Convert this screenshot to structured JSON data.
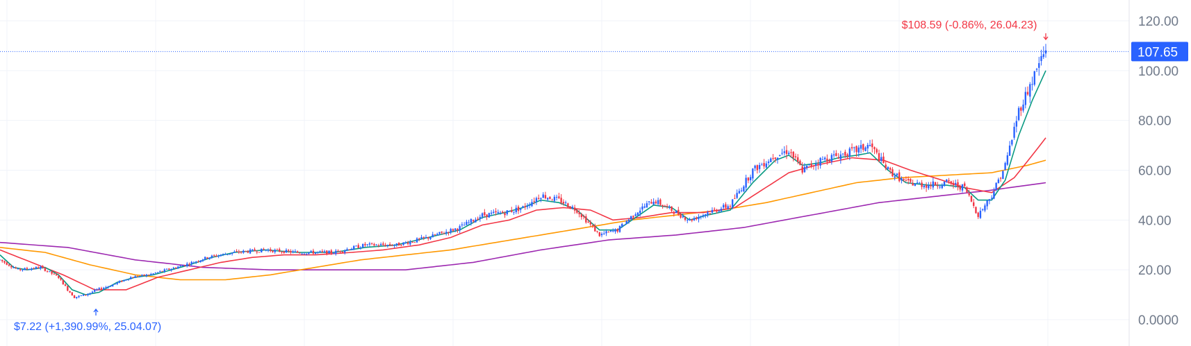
{
  "chart_data": {
    "type": "candlestick",
    "ylim": [
      -5,
      130
    ],
    "y_ticks": [
      "120.00",
      "100.00",
      "80.00",
      "60.00",
      "40.00",
      "20.00",
      "0.0000"
    ],
    "y_tick_values": [
      120,
      100,
      80,
      60,
      40,
      20,
      0
    ],
    "grid": true,
    "current_price": {
      "label": "107.65",
      "value": 107.65
    },
    "annotations": [
      {
        "name": "high-annotation",
        "text": "$108.59 (-0.86%, 26.04.23)",
        "value": 108.59,
        "color": "#f23645"
      },
      {
        "name": "low-annotation",
        "text": "$7.22 (+1,390.99%, 25.04.07)",
        "value": 7.22,
        "color": "#2962ff"
      }
    ],
    "colors": {
      "up": "#2962ff",
      "down": "#f23645",
      "ma_short": "#089981",
      "ma_mid": "#f23645",
      "ma_long": "#ff9800",
      "ma_longest": "#9c27b0",
      "grid": "#f0f3fa",
      "price_tag": "#2962ff"
    },
    "price_waypoints": [
      [
        0,
        24
      ],
      [
        8,
        20
      ],
      [
        18,
        21
      ],
      [
        26,
        17
      ],
      [
        30,
        12
      ],
      [
        33,
        9
      ],
      [
        38,
        10
      ],
      [
        43,
        12
      ],
      [
        50,
        14
      ],
      [
        58,
        17
      ],
      [
        66,
        18
      ],
      [
        74,
        20
      ],
      [
        82,
        22
      ],
      [
        92,
        25
      ],
      [
        104,
        27
      ],
      [
        118,
        28
      ],
      [
        132,
        27
      ],
      [
        148,
        27
      ],
      [
        162,
        30
      ],
      [
        176,
        30
      ],
      [
        190,
        33
      ],
      [
        204,
        37
      ],
      [
        214,
        42
      ],
      [
        224,
        43
      ],
      [
        232,
        45
      ],
      [
        240,
        50
      ],
      [
        248,
        48
      ],
      [
        256,
        44
      ],
      [
        266,
        34
      ],
      [
        274,
        36
      ],
      [
        282,
        43
      ],
      [
        290,
        48
      ],
      [
        298,
        44
      ],
      [
        306,
        40
      ],
      [
        314,
        43
      ],
      [
        324,
        46
      ],
      [
        334,
        60
      ],
      [
        344,
        66
      ],
      [
        350,
        68
      ],
      [
        356,
        60
      ],
      [
        364,
        64
      ],
      [
        372,
        66
      ],
      [
        380,
        68
      ],
      [
        386,
        70
      ],
      [
        394,
        60
      ],
      [
        402,
        55
      ],
      [
        412,
        54
      ],
      [
        420,
        55
      ],
      [
        428,
        53
      ],
      [
        434,
        42
      ],
      [
        440,
        50
      ],
      [
        446,
        62
      ],
      [
        452,
        84
      ],
      [
        458,
        96
      ],
      [
        462,
        105
      ],
      [
        464,
        108
      ]
    ],
    "ma_short": [
      [
        0,
        26
      ],
      [
        6,
        21
      ],
      [
        12,
        20
      ],
      [
        20,
        21
      ],
      [
        26,
        18
      ],
      [
        32,
        12
      ],
      [
        38,
        10
      ],
      [
        44,
        11
      ],
      [
        52,
        15
      ],
      [
        60,
        17
      ],
      [
        68,
        18
      ],
      [
        76,
        20
      ],
      [
        84,
        22
      ],
      [
        94,
        25
      ],
      [
        104,
        27
      ],
      [
        118,
        28
      ],
      [
        132,
        27
      ],
      [
        148,
        27
      ],
      [
        162,
        29
      ],
      [
        176,
        30
      ],
      [
        190,
        33
      ],
      [
        204,
        36
      ],
      [
        214,
        41
      ],
      [
        224,
        43
      ],
      [
        232,
        45
      ],
      [
        240,
        48
      ],
      [
        248,
        47
      ],
      [
        256,
        44
      ],
      [
        266,
        36
      ],
      [
        274,
        36
      ],
      [
        282,
        41
      ],
      [
        290,
        46
      ],
      [
        298,
        45
      ],
      [
        306,
        40
      ],
      [
        314,
        42
      ],
      [
        324,
        44
      ],
      [
        334,
        55
      ],
      [
        344,
        64
      ],
      [
        350,
        66
      ],
      [
        356,
        62
      ],
      [
        364,
        63
      ],
      [
        372,
        65
      ],
      [
        380,
        66
      ],
      [
        386,
        67
      ],
      [
        394,
        60
      ],
      [
        402,
        55
      ],
      [
        412,
        54
      ],
      [
        420,
        54
      ],
      [
        428,
        53
      ],
      [
        434,
        48
      ],
      [
        440,
        48
      ],
      [
        446,
        56
      ],
      [
        452,
        74
      ],
      [
        458,
        88
      ],
      [
        464,
        100
      ]
    ],
    "ma_mid": [
      [
        0,
        28
      ],
      [
        14,
        23
      ],
      [
        28,
        18
      ],
      [
        42,
        12
      ],
      [
        56,
        12
      ],
      [
        70,
        17
      ],
      [
        84,
        20
      ],
      [
        98,
        23
      ],
      [
        112,
        25
      ],
      [
        126,
        26
      ],
      [
        140,
        26
      ],
      [
        156,
        27
      ],
      [
        170,
        28
      ],
      [
        186,
        30
      ],
      [
        200,
        33
      ],
      [
        214,
        38
      ],
      [
        226,
        40
      ],
      [
        238,
        44
      ],
      [
        250,
        45
      ],
      [
        262,
        44
      ],
      [
        272,
        40
      ],
      [
        284,
        41
      ],
      [
        298,
        43
      ],
      [
        312,
        43
      ],
      [
        326,
        45
      ],
      [
        338,
        52
      ],
      [
        350,
        59
      ],
      [
        362,
        62
      ],
      [
        378,
        65
      ],
      [
        392,
        64
      ],
      [
        404,
        60
      ],
      [
        418,
        56
      ],
      [
        428,
        53
      ],
      [
        440,
        51
      ],
      [
        450,
        57
      ],
      [
        458,
        66
      ],
      [
        464,
        73
      ]
    ],
    "ma_long": [
      [
        0,
        29
      ],
      [
        20,
        27
      ],
      [
        40,
        22
      ],
      [
        60,
        18
      ],
      [
        80,
        16
      ],
      [
        100,
        16
      ],
      [
        120,
        18
      ],
      [
        140,
        21
      ],
      [
        160,
        24
      ],
      [
        180,
        26
      ],
      [
        200,
        28
      ],
      [
        220,
        31
      ],
      [
        240,
        34
      ],
      [
        260,
        37
      ],
      [
        280,
        40
      ],
      [
        300,
        42
      ],
      [
        320,
        44
      ],
      [
        340,
        47
      ],
      [
        360,
        51
      ],
      [
        380,
        55
      ],
      [
        400,
        57
      ],
      [
        420,
        58
      ],
      [
        440,
        59
      ],
      [
        456,
        62
      ],
      [
        464,
        64
      ]
    ],
    "ma_longest": [
      [
        0,
        31
      ],
      [
        30,
        29
      ],
      [
        60,
        24
      ],
      [
        90,
        21
      ],
      [
        120,
        20
      ],
      [
        150,
        20
      ],
      [
        180,
        20
      ],
      [
        210,
        23
      ],
      [
        240,
        28
      ],
      [
        270,
        32
      ],
      [
        300,
        34
      ],
      [
        330,
        37
      ],
      [
        360,
        42
      ],
      [
        390,
        47
      ],
      [
        420,
        50
      ],
      [
        440,
        52
      ],
      [
        464,
        55
      ]
    ]
  }
}
